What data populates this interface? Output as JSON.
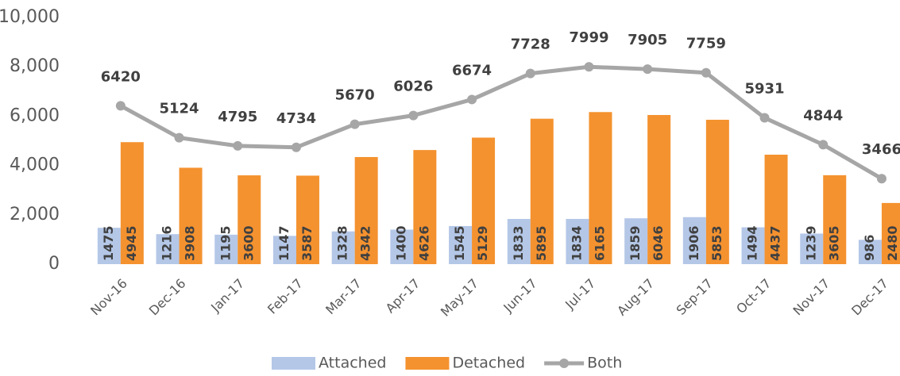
{
  "chart_data": {
    "type": "bar-line",
    "categories": [
      "Nov-16",
      "Dec-16",
      "Jan-17",
      "Feb-17",
      "Mar-17",
      "Apr-17",
      "May-17",
      "Jun-17",
      "Jul-17",
      "Aug-17",
      "Sep-17",
      "Oct-17",
      "Nov-17",
      "Dec-17"
    ],
    "series": [
      {
        "name": "Attached",
        "color": "#b4c7e7",
        "kind": "bar",
        "values": [
          1475,
          1216,
          1195,
          1147,
          1328,
          1400,
          1545,
          1833,
          1834,
          1859,
          1906,
          1494,
          1239,
          986
        ]
      },
      {
        "name": "Detached",
        "color": "#f4922f",
        "kind": "bar",
        "values": [
          4945,
          3908,
          3600,
          3587,
          4342,
          4626,
          5129,
          5895,
          6165,
          6046,
          5853,
          4437,
          3605,
          2480
        ]
      },
      {
        "name": "Both",
        "color": "#a6a6a6",
        "kind": "line",
        "values": [
          6420,
          5124,
          4795,
          4734,
          5670,
          6026,
          6674,
          7728,
          7999,
          7905,
          7759,
          5931,
          4844,
          3466
        ]
      }
    ],
    "ylim": [
      0,
      10000
    ],
    "yticks": [
      0,
      {
        "value": 2000,
        "label": "2,000"
      },
      {
        "value": 4000,
        "label": "4,000"
      },
      {
        "value": 6000,
        "label": "6,000"
      },
      {
        "value": 8000,
        "label": "8,000"
      },
      {
        "value": 10000,
        "label": "10,000"
      }
    ],
    "grid": false,
    "legend": "bottom"
  }
}
